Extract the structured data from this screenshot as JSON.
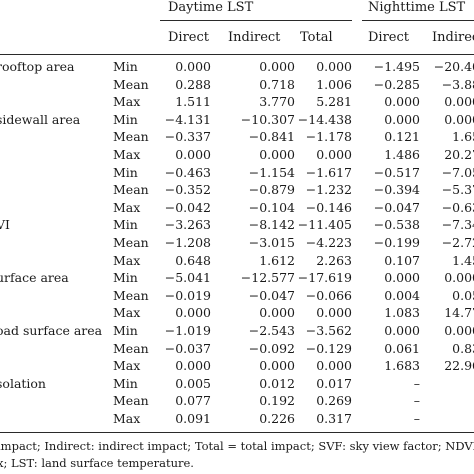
{
  "header": {
    "daytime_label": "Daytime LST",
    "nighttime_label": "Nighttime LST",
    "columns": [
      "Direct",
      "Indirect",
      "Total",
      "Direct",
      "Indirec"
    ]
  },
  "rows": [
    {
      "variable": "rooftop area",
      "stat": "Min",
      "v": [
        "0.000",
        "0.000",
        "0.000",
        "−1.495",
        "−20.40"
      ]
    },
    {
      "variable": "",
      "stat": "Mean",
      "v": [
        "0.288",
        "0.718",
        "1.006",
        "−0.285",
        "−3.88"
      ]
    },
    {
      "variable": "",
      "stat": "Max",
      "v": [
        "1.511",
        "3.770",
        "5.281",
        "0.000",
        "0.000"
      ]
    },
    {
      "variable": "sidewall area",
      "stat": "Min",
      "v": [
        "−4.131",
        "−10.307",
        "−14.438",
        "0.000",
        "0.000"
      ]
    },
    {
      "variable": "",
      "stat": "Mean",
      "v": [
        "−0.337",
        "−0.841",
        "−1.178",
        "0.121",
        "1.65"
      ]
    },
    {
      "variable": "",
      "stat": "Max",
      "v": [
        "0.000",
        "0.000",
        "0.000",
        "1.486",
        "20.27"
      ]
    },
    {
      "variable": "",
      "stat": "Min",
      "v": [
        "−0.463",
        "−1.154",
        "−1.617",
        "−0.517",
        "−7.05"
      ]
    },
    {
      "variable": "",
      "stat": "Mean",
      "v": [
        "−0.352",
        "−0.879",
        "−1.232",
        "−0.394",
        "−5.37"
      ]
    },
    {
      "variable": "",
      "stat": "Max",
      "v": [
        "−0.042",
        "−0.104",
        "−0.146",
        "−0.047",
        "−0.63"
      ]
    },
    {
      "variable": "VI",
      "stat": "Min",
      "v": [
        "−3.263",
        "−8.142",
        "−11.405",
        "−0.538",
        "−7.34"
      ]
    },
    {
      "variable": "",
      "stat": "Mean",
      "v": [
        "−1.208",
        "−3.015",
        "−4.223",
        "−0.199",
        "−2.72"
      ]
    },
    {
      "variable": "",
      "stat": "Max",
      "v": [
        "0.648",
        "1.612",
        "2.263",
        "0.107",
        "1.45"
      ]
    },
    {
      "variable": "urface area",
      "stat": "Min",
      "v": [
        "−5.041",
        "−12.577",
        "−17.619",
        "0.000",
        "0.000"
      ]
    },
    {
      "variable": "",
      "stat": "Mean",
      "v": [
        "−0.019",
        "−0.047",
        "−0.066",
        "0.004",
        "0.05"
      ]
    },
    {
      "variable": "",
      "stat": "Max",
      "v": [
        "0.000",
        "0.000",
        "0.000",
        "1.083",
        "14.77"
      ]
    },
    {
      "variable": "oad surface area",
      "stat": "Min",
      "v": [
        "−1.019",
        "−2.543",
        "−3.562",
        "0.000",
        "0.000"
      ]
    },
    {
      "variable": "",
      "stat": "Mean",
      "v": [
        "−0.037",
        "−0.092",
        "−0.129",
        "0.061",
        "0.83"
      ]
    },
    {
      "variable": "",
      "stat": "Max",
      "v": [
        "0.000",
        "0.000",
        "0.000",
        "1.683",
        "22.96"
      ]
    },
    {
      "variable": "solation",
      "stat": "Min",
      "v": [
        "0.005",
        "0.012",
        "0.017",
        "–",
        "–"
      ]
    },
    {
      "variable": "",
      "stat": "Mean",
      "v": [
        "0.077",
        "0.192",
        "0.269",
        "–",
        "–"
      ]
    },
    {
      "variable": "",
      "stat": "Max",
      "v": [
        "0.091",
        "0.226",
        "0.317",
        "–",
        "–"
      ]
    }
  ],
  "footnotes": [
    "impact; Indirect: indirect impact; Total = total impact; SVF: sky view factor; NDVI: norma",
    "x; LST: land surface temperature."
  ]
}
